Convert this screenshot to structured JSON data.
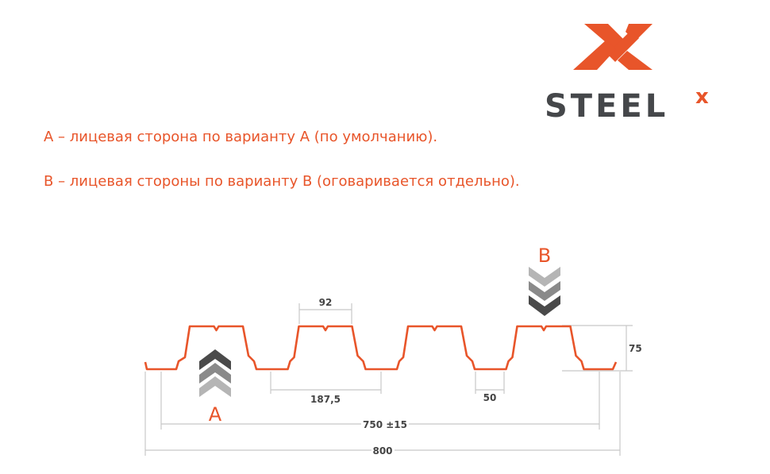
{
  "logo": {
    "text": "STEEL",
    "superscript": "x",
    "brand_color": "#e8552a",
    "text_color": "#45474a"
  },
  "captions": [
    "А – лицевая сторона по варианту А (по умолчанию).",
    "В – лицевая стороны по варианту В (оговаривается отдельно)."
  ],
  "diagram": {
    "profile_color": "#e8552a",
    "dimension_color": "#c8c8c8",
    "side_a_label": "A",
    "side_b_label": "B",
    "dimensions": {
      "top_width": "92",
      "pitch": "187,5",
      "bottom_width": "50",
      "height": "75",
      "working_width": "750 ±15",
      "total_width": "800"
    }
  }
}
